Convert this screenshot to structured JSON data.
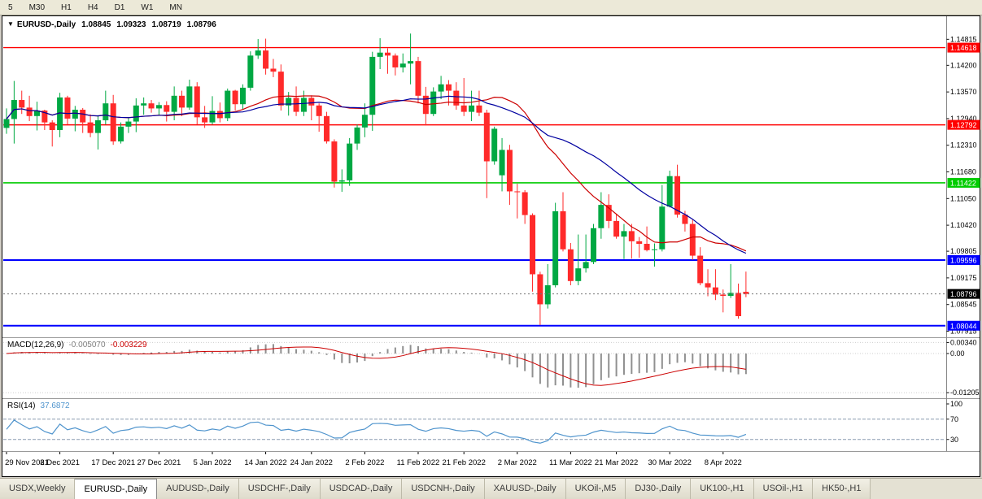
{
  "toolbar": {
    "timeframes": [
      "5",
      "M30",
      "H1",
      "H4",
      "D1",
      "W1",
      "MN"
    ]
  },
  "chart": {
    "header": {
      "marker": "▼",
      "symbol_label": "EURUSD-,Daily",
      "open": "1.08845",
      "high": "1.09323",
      "low": "1.08719",
      "close": "1.08796"
    },
    "price_axis_labels": [
      "1.14815",
      "1.14200",
      "1.13570",
      "1.12940",
      "1.12310",
      "1.11680",
      "1.11050",
      "1.10420",
      "1.09805",
      "1.09175",
      "1.08545",
      "1.07915"
    ],
    "hlines": [
      {
        "price": 1.14618,
        "label": "1.14618",
        "color": "#FF0000",
        "width": 1.4
      },
      {
        "price": 1.12792,
        "label": "1.12792",
        "color": "#FF0000",
        "width": 1.4
      },
      {
        "price": 1.11422,
        "label": "1.11422",
        "color": "#00CC00",
        "width": 1.6
      },
      {
        "price": 1.09596,
        "label": "1.09596",
        "color": "#0000FF",
        "width": 2
      },
      {
        "price": 1.08044,
        "label": "1.08044",
        "color": "#0000FF",
        "width": 2
      }
    ],
    "current_price": {
      "value": 1.08796,
      "label": "1.08796",
      "badge_color": "#000000"
    },
    "date_labels": [
      {
        "text": "29 Nov 2021",
        "i": 0
      },
      {
        "text": "8 Dec 2021",
        "i": 7
      },
      {
        "text": "17 Dec 2021",
        "i": 14
      },
      {
        "text": "27 Dec 2021",
        "i": 20
      },
      {
        "text": "5 Jan 2022",
        "i": 27
      },
      {
        "text": "14 Jan 2022",
        "i": 34
      },
      {
        "text": "24 Jan 2022",
        "i": 40
      },
      {
        "text": "2 Feb 2022",
        "i": 47
      },
      {
        "text": "11 Feb 2022",
        "i": 54
      },
      {
        "text": "21 Feb 2022",
        "i": 60
      },
      {
        "text": "2 Mar 2022",
        "i": 67
      },
      {
        "text": "11 Mar 2022",
        "i": 74
      },
      {
        "text": "21 Mar 2022",
        "i": 80
      },
      {
        "text": "30 Mar 2022",
        "i": 87
      },
      {
        "text": "8 Apr 2022",
        "i": 94
      }
    ],
    "colors": {
      "up": "#00A843",
      "down": "#FF2A2A",
      "ma_fast": "#CC0000",
      "ma_slow": "#0000A0",
      "macd_hist": "#909090",
      "macd_signal": "#CC0000",
      "rsi_line": "#4f94cd"
    }
  },
  "macd": {
    "label": "MACD(12,26,9)",
    "value_main": "-0.005070",
    "value_signal": "-0.003229",
    "axis_labels": [
      "0.00340",
      "0.00",
      "-0.01205"
    ],
    "params": {
      "fast": 12,
      "slow": 26,
      "signal": 9
    }
  },
  "rsi": {
    "label": "RSI(14)",
    "value": "37.6872",
    "period": 14,
    "axis_labels": [
      "100",
      "70",
      "30"
    ],
    "levels": [
      70,
      30
    ]
  },
  "tabs": {
    "items": [
      "USDX,Weekly",
      "EURUSD-,Daily",
      "AUDUSD-,Daily",
      "USDCHF-,Daily",
      "USDCAD-,Daily",
      "USDCNH-,Daily",
      "XAUUSD-,Daily",
      "UKOil-,M5",
      "DJ30-,Daily",
      "UK100-,H1",
      "USOil-,H1",
      "HK50-,H1"
    ],
    "active_index": 1
  },
  "chart_data": {
    "type": "candlestick",
    "symbol": "EURUSD-",
    "timeframe": "Daily",
    "title": "EURUSD-,Daily",
    "ohlc_current": {
      "open": 1.08845,
      "high": 1.09323,
      "low": 1.08719,
      "close": 1.08796
    },
    "price_axis_range": [
      1.07915,
      1.14815
    ],
    "overlays": {
      "ma_fast_period": 20,
      "ma_slow_period": 30
    },
    "candles": [
      [
        "2021.11.29",
        1.1272,
        1.1318,
        1.1258,
        1.1293
      ],
      [
        "2021.11.30",
        1.1293,
        1.1383,
        1.1235,
        1.1338
      ],
      [
        "2021.12.01",
        1.1338,
        1.136,
        1.1305,
        1.132
      ],
      [
        "2021.12.02",
        1.132,
        1.1348,
        1.1288,
        1.13
      ],
      [
        "2021.12.03",
        1.13,
        1.1334,
        1.1266,
        1.1313
      ],
      [
        "2021.12.06",
        1.1313,
        1.1315,
        1.1267,
        1.1285
      ],
      [
        "2021.12.07",
        1.1285,
        1.129,
        1.1228,
        1.1267
      ],
      [
        "2021.12.08",
        1.1267,
        1.1355,
        1.125,
        1.1344
      ],
      [
        "2021.12.09",
        1.1344,
        1.1348,
        1.128,
        1.1294
      ],
      [
        "2021.12.10",
        1.1294,
        1.1324,
        1.1264,
        1.1315
      ],
      [
        "2021.12.13",
        1.1315,
        1.1319,
        1.126,
        1.1285
      ],
      [
        "2021.12.14",
        1.1285,
        1.1304,
        1.125,
        1.126
      ],
      [
        "2021.12.15",
        1.126,
        1.1302,
        1.1221,
        1.129
      ],
      [
        "2021.12.16",
        1.129,
        1.136,
        1.128,
        1.133
      ],
      [
        "2021.12.17",
        1.133,
        1.135,
        1.1232,
        1.124
      ],
      [
        "2021.12.20",
        1.124,
        1.1285,
        1.1235,
        1.1275
      ],
      [
        "2021.12.21",
        1.1275,
        1.1295,
        1.126,
        1.1287
      ],
      [
        "2021.12.22",
        1.1287,
        1.1342,
        1.1262,
        1.1325
      ],
      [
        "2021.12.23",
        1.1325,
        1.1344,
        1.1303,
        1.133
      ],
      [
        "2021.12.24",
        1.133,
        1.1338,
        1.1308,
        1.1318
      ],
      [
        "2021.12.27",
        1.1318,
        1.1333,
        1.1302,
        1.1326
      ],
      [
        "2021.12.28",
        1.1326,
        1.1335,
        1.1287,
        1.131
      ],
      [
        "2021.12.29",
        1.131,
        1.137,
        1.129,
        1.1348
      ],
      [
        "2021.12.30",
        1.1348,
        1.136,
        1.13,
        1.132
      ],
      [
        "2021.12.31",
        1.132,
        1.1386,
        1.1315,
        1.137
      ],
      [
        "2022.01.03",
        1.137,
        1.138,
        1.128,
        1.1297
      ],
      [
        "2022.01.04",
        1.1297,
        1.1324,
        1.1272,
        1.1285
      ],
      [
        "2022.01.05",
        1.1285,
        1.1347,
        1.128,
        1.1312
      ],
      [
        "2022.01.06",
        1.1312,
        1.1332,
        1.1285,
        1.1295
      ],
      [
        "2022.01.07",
        1.1295,
        1.1365,
        1.1288,
        1.136
      ],
      [
        "2022.01.10",
        1.136,
        1.1362,
        1.1313,
        1.1328
      ],
      [
        "2022.01.11",
        1.1328,
        1.1375,
        1.1315,
        1.1367
      ],
      [
        "2022.01.12",
        1.1367,
        1.1453,
        1.136,
        1.1443
      ],
      [
        "2022.01.13",
        1.1443,
        1.1482,
        1.1435,
        1.1455
      ],
      [
        "2022.01.14",
        1.1455,
        1.1483,
        1.1398,
        1.1412
      ],
      [
        "2022.01.17",
        1.1412,
        1.1435,
        1.1392,
        1.1405
      ],
      [
        "2022.01.18",
        1.1405,
        1.1422,
        1.1313,
        1.1325
      ],
      [
        "2022.01.19",
        1.1325,
        1.1357,
        1.1301,
        1.1343
      ],
      [
        "2022.01.20",
        1.1343,
        1.137,
        1.13,
        1.131
      ],
      [
        "2022.01.21",
        1.131,
        1.136,
        1.13,
        1.1343
      ],
      [
        "2022.01.24",
        1.1343,
        1.1349,
        1.129,
        1.1325
      ],
      [
        "2022.01.25",
        1.1325,
        1.133,
        1.1263,
        1.13
      ],
      [
        "2022.01.26",
        1.13,
        1.131,
        1.1235,
        1.124
      ],
      [
        "2022.01.27",
        1.124,
        1.1245,
        1.1131,
        1.1145
      ],
      [
        "2022.01.28",
        1.1145,
        1.1174,
        1.1121,
        1.1148
      ],
      [
        "2022.01.31",
        1.1148,
        1.1248,
        1.1135,
        1.1235
      ],
      [
        "2022.02.01",
        1.1235,
        1.128,
        1.122,
        1.1273
      ],
      [
        "2022.02.02",
        1.1273,
        1.133,
        1.125,
        1.1303
      ],
      [
        "2022.02.03",
        1.1303,
        1.1452,
        1.1265,
        1.144
      ],
      [
        "2022.02.04",
        1.144,
        1.1484,
        1.1411,
        1.145
      ],
      [
        "2022.02.07",
        1.145,
        1.146,
        1.14,
        1.1443
      ],
      [
        "2022.02.08",
        1.1443,
        1.1448,
        1.1396,
        1.1415
      ],
      [
        "2022.02.09",
        1.1415,
        1.1448,
        1.1403,
        1.1424
      ],
      [
        "2022.02.10",
        1.1424,
        1.1495,
        1.1375,
        1.143
      ],
      [
        "2022.02.11",
        1.143,
        1.144,
        1.133,
        1.1348
      ],
      [
        "2022.02.14",
        1.1348,
        1.1369,
        1.1278,
        1.1305
      ],
      [
        "2022.02.15",
        1.1305,
        1.1368,
        1.13,
        1.1358
      ],
      [
        "2022.02.16",
        1.1358,
        1.1395,
        1.134,
        1.1375
      ],
      [
        "2022.02.17",
        1.1375,
        1.1385,
        1.1325,
        1.136
      ],
      [
        "2022.02.18",
        1.136,
        1.138,
        1.1315,
        1.1325
      ],
      [
        "2022.02.21",
        1.1325,
        1.139,
        1.13,
        1.131
      ],
      [
        "2022.02.22",
        1.131,
        1.136,
        1.1288,
        1.1325
      ],
      [
        "2022.02.23",
        1.1325,
        1.136,
        1.13,
        1.1308
      ],
      [
        "2022.02.24",
        1.1308,
        1.1315,
        1.1106,
        1.1193
      ],
      [
        "2022.02.25",
        1.1193,
        1.1275,
        1.1185,
        1.127
      ],
      [
        "2022.02.28",
        1.116,
        1.1248,
        1.1122,
        1.122
      ],
      [
        "2022.03.01",
        1.122,
        1.1232,
        1.109,
        1.1122
      ],
      [
        "2022.03.02",
        1.1122,
        1.114,
        1.1058,
        1.112
      ],
      [
        "2022.03.03",
        1.112,
        1.1125,
        1.1045,
        1.1066
      ],
      [
        "2022.03.04",
        1.1066,
        1.107,
        1.0885,
        1.0926
      ],
      [
        "2022.03.07",
        1.0926,
        1.0932,
        1.0806,
        1.0855
      ],
      [
        "2022.03.08",
        1.0855,
        1.095,
        1.0845,
        1.09
      ],
      [
        "2022.03.09",
        1.09,
        1.1095,
        1.0895,
        1.1075
      ],
      [
        "2022.03.10",
        1.1075,
        1.112,
        1.098,
        1.0985
      ],
      [
        "2022.03.11",
        1.0985,
        1.1,
        1.09,
        1.091
      ],
      [
        "2022.03.14",
        1.091,
        1.102,
        1.09,
        1.094
      ],
      [
        "2022.03.15",
        1.094,
        1.102,
        1.093,
        1.0955
      ],
      [
        "2022.03.16",
        1.0955,
        1.1045,
        1.095,
        1.1035
      ],
      [
        "2022.03.17",
        1.1035,
        1.112,
        1.101,
        1.109
      ],
      [
        "2022.03.18",
        1.109,
        1.1115,
        1.1035,
        1.1052
      ],
      [
        "2022.03.21",
        1.1052,
        1.1069,
        1.101,
        1.1015
      ],
      [
        "2022.03.22",
        1.1015,
        1.1045,
        1.0962,
        1.1028
      ],
      [
        "2022.03.23",
        1.1028,
        1.1045,
        1.0963,
        1.1004
      ],
      [
        "2022.03.24",
        1.1004,
        1.1014,
        1.0965,
        1.0998
      ],
      [
        "2022.03.25",
        1.0998,
        1.1039,
        1.098,
        1.0983
      ],
      [
        "2022.03.28",
        1.0983,
        1.0999,
        1.0944,
        1.0985
      ],
      [
        "2022.03.29",
        1.0985,
        1.1137,
        1.098,
        1.1086
      ],
      [
        "2022.03.30",
        1.1086,
        1.1171,
        1.1084,
        1.1158
      ],
      [
        "2022.03.31",
        1.1158,
        1.1185,
        1.106,
        1.1067
      ],
      [
        "2022.04.01",
        1.1067,
        1.1076,
        1.1027,
        1.1045
      ],
      [
        "2022.04.04",
        1.1045,
        1.1055,
        1.096,
        1.097
      ],
      [
        "2022.04.05",
        1.097,
        1.099,
        1.09,
        1.0905
      ],
      [
        "2022.04.06",
        1.0905,
        1.0938,
        1.0874,
        1.0895
      ],
      [
        "2022.04.07",
        1.0895,
        1.0938,
        1.0865,
        1.0878
      ],
      [
        "2022.04.08",
        1.0878,
        1.089,
        1.0836,
        1.0875
      ],
      [
        "2022.04.11",
        1.0875,
        1.095,
        1.087,
        1.0882
      ],
      [
        "2022.04.12",
        1.0882,
        1.0904,
        1.0821,
        1.0827
      ],
      [
        "2022.04.13",
        1.08845,
        1.09323,
        1.08719,
        1.08796
      ]
    ]
  }
}
